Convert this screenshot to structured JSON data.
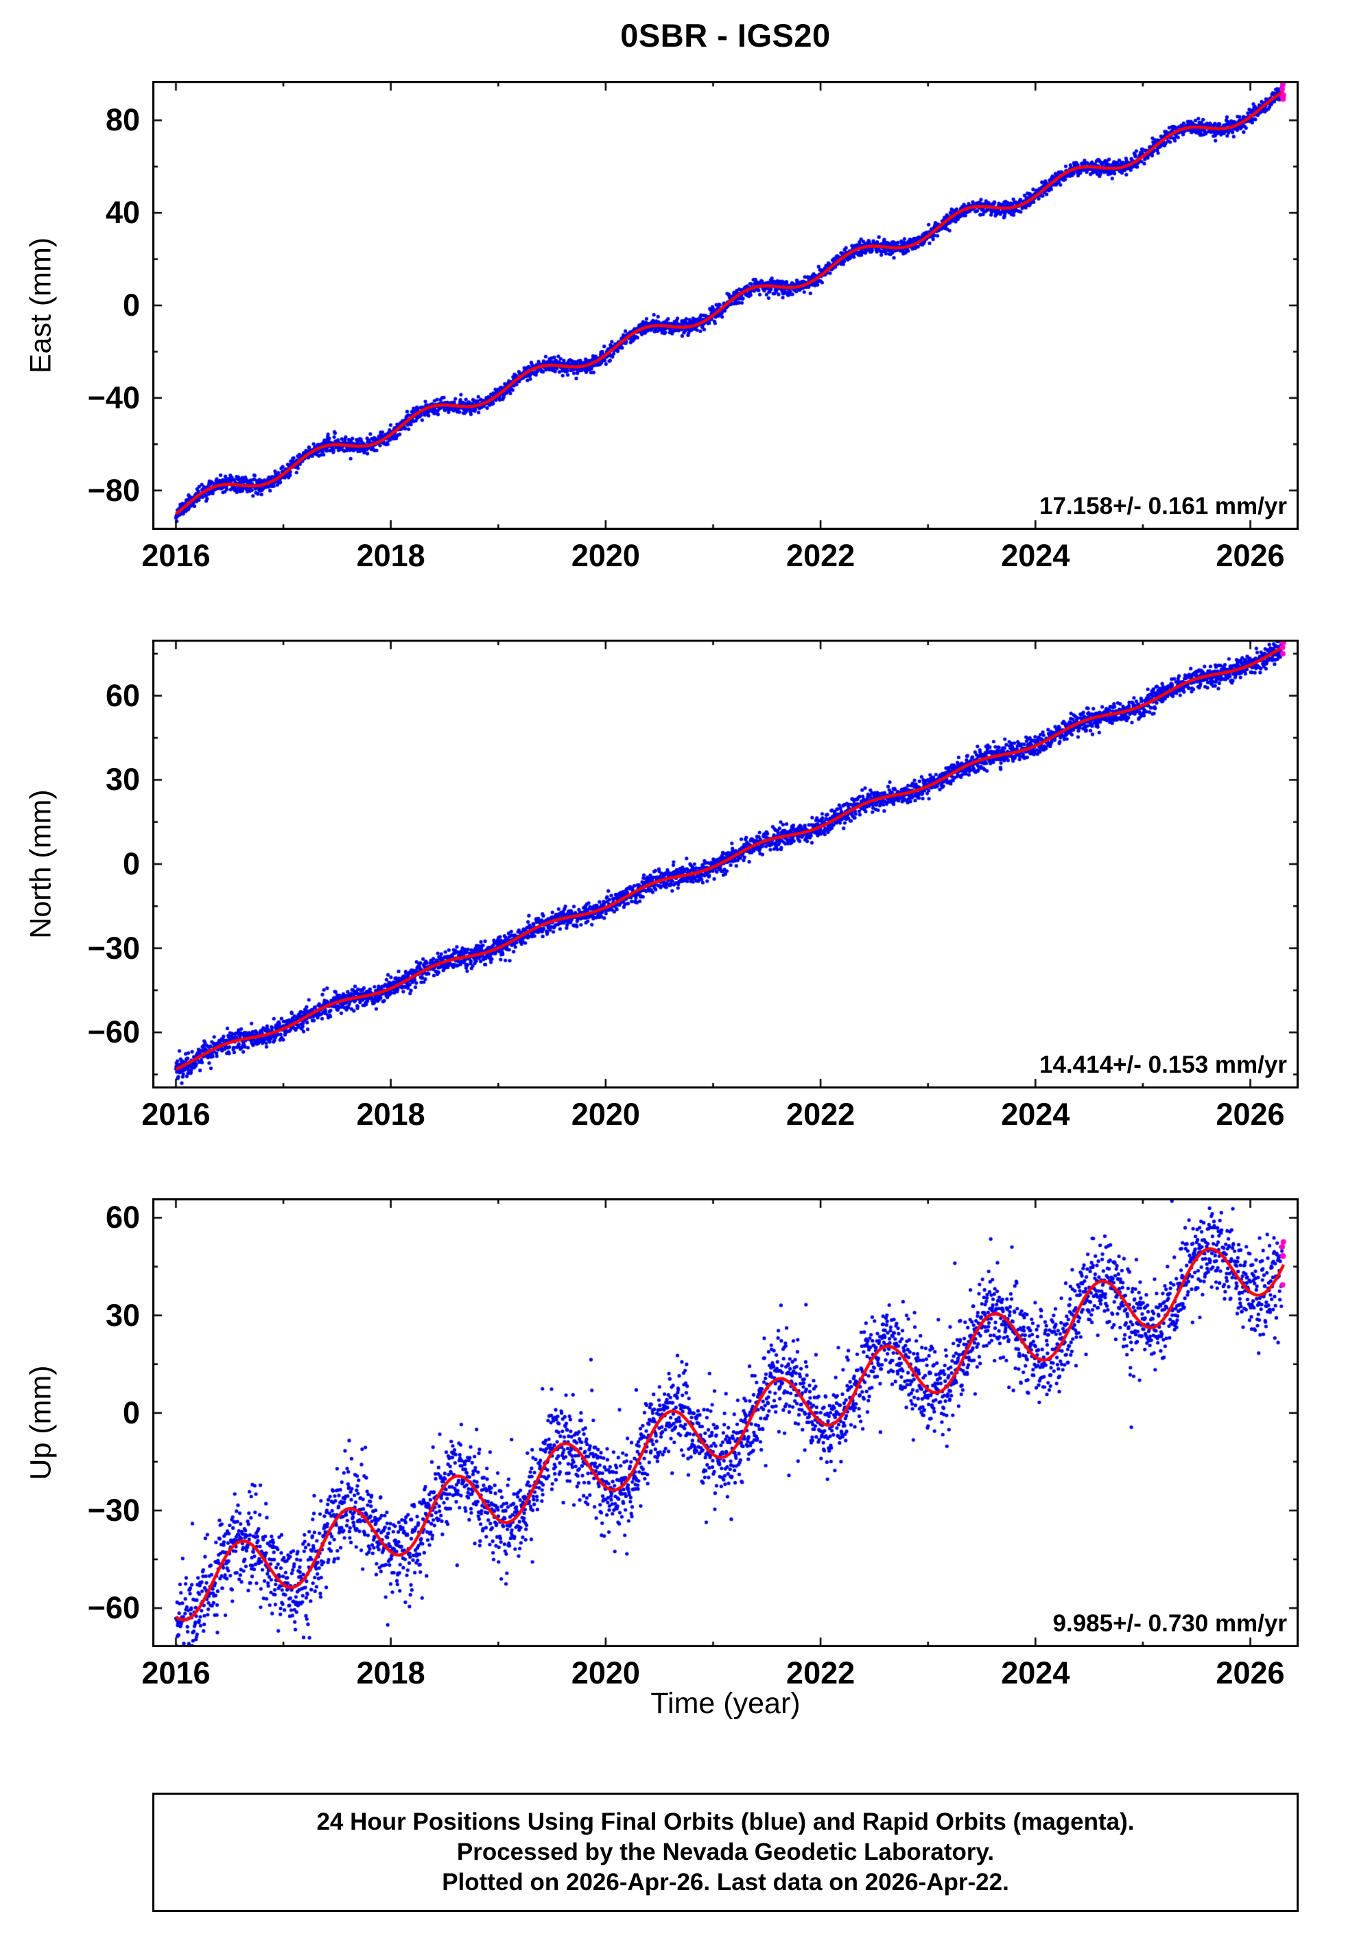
{
  "title": "0SBR - IGS20",
  "xlabel": "Time (year)",
  "footer": {
    "line1": "24 Hour Positions Using Final Orbits (blue) and Rapid Orbits (magenta).",
    "line2": "Processed by the Nevada Geodetic Laboratory.",
    "line3": "Plotted on 2026-Apr-26. Last data on 2026-Apr-22."
  },
  "colors": {
    "final_orbit_blue": "#0000ee",
    "model_line_red": "#ff0000",
    "rapid_orbit_magenta": "#ff00cc",
    "frame_black": "#000000"
  },
  "chart_data": [
    {
      "type": "scatter",
      "name": "east",
      "ylabel": "East (mm)",
      "rate_label": "17.158+/- 0.161 mm/yr",
      "x_range": [
        2015.78,
        2026.45
      ],
      "y_range": [
        -97,
        97
      ],
      "x_ticks_major": [
        2016,
        2018,
        2020,
        2022,
        2024,
        2026
      ],
      "x_ticks_minor": [
        2017,
        2019,
        2021,
        2023,
        2025
      ],
      "y_ticks_major": [
        -80,
        -40,
        0,
        40,
        80
      ],
      "y_ticks_minor": [
        -60,
        -20,
        20,
        60
      ],
      "series": {
        "start_year": 2016.0,
        "end_year": 2026.31,
        "start_value": -88,
        "rate_mm_per_yr": 17.158,
        "seasonal_amplitude_mm": 3.5,
        "seasonal_phase_yr": 0.1,
        "noise_sd_mm": 1.6,
        "outlier_fraction": 0,
        "outlier_sd_mm": 0,
        "rapid_count": 5
      },
      "model_anchor_points": [
        [
          2016,
          -88.0
        ],
        [
          2017,
          -70.8
        ],
        [
          2018,
          -53.7
        ],
        [
          2019,
          -36.5
        ],
        [
          2020,
          -19.4
        ],
        [
          2021,
          -2.2
        ],
        [
          2022,
          14.9
        ],
        [
          2023,
          32.1
        ],
        [
          2024,
          49.3
        ],
        [
          2025,
          66.4
        ],
        [
          2026,
          83.6
        ],
        [
          2026.3,
          88.7
        ]
      ]
    },
    {
      "type": "scatter",
      "name": "north",
      "ylabel": "North (mm)",
      "rate_label": "14.414+/- 0.153 mm/yr",
      "x_range": [
        2015.78,
        2026.45
      ],
      "y_range": [
        -80,
        80
      ],
      "x_ticks_major": [
        2016,
        2018,
        2020,
        2022,
        2024,
        2026
      ],
      "x_ticks_minor": [
        2017,
        2019,
        2021,
        2023,
        2025
      ],
      "y_ticks_major": [
        -60,
        -30,
        0,
        30,
        60
      ],
      "y_ticks_minor": [
        -75,
        -45,
        -15,
        15,
        45,
        75
      ],
      "series": {
        "start_year": 2016.0,
        "end_year": 2026.31,
        "start_value": -72,
        "rate_mm_per_yr": 14.414,
        "seasonal_amplitude_mm": 1.2,
        "seasonal_phase_yr": 0.2,
        "noise_sd_mm": 1.9,
        "outlier_fraction": 0,
        "outlier_sd_mm": 0,
        "rapid_count": 5
      },
      "model_anchor_points": [
        [
          2016,
          -72.0
        ],
        [
          2017,
          -57.6
        ],
        [
          2018,
          -43.2
        ],
        [
          2019,
          -28.8
        ],
        [
          2020,
          -14.3
        ],
        [
          2021,
          0.1
        ],
        [
          2022,
          14.5
        ],
        [
          2023,
          28.9
        ],
        [
          2024,
          43.3
        ],
        [
          2025,
          57.7
        ],
        [
          2026,
          72.1
        ],
        [
          2026.3,
          76.5
        ]
      ]
    },
    {
      "type": "scatter",
      "name": "up",
      "ylabel": "Up (mm)",
      "rate_label": "9.985+/- 0.730 mm/yr",
      "x_range": [
        2015.78,
        2026.45
      ],
      "y_range": [
        -72,
        66
      ],
      "x_ticks_major": [
        2016,
        2018,
        2020,
        2022,
        2024,
        2026
      ],
      "x_ticks_minor": [
        2017,
        2019,
        2021,
        2023,
        2025
      ],
      "y_ticks_major": [
        -60,
        -30,
        0,
        30,
        60
      ],
      "y_ticks_minor": [
        -45,
        -15,
        15,
        45
      ],
      "series": {
        "start_year": 2016.0,
        "end_year": 2026.31,
        "start_value": -55,
        "rate_mm_per_yr": 9.985,
        "seasonal_amplitude_mm": 9.5,
        "seasonal_phase_yr": 0.35,
        "noise_sd_mm": 6.5,
        "outlier_fraction": 0.05,
        "outlier_sd_mm": 13,
        "rapid_count": 5
      },
      "model_anchor_points": [
        [
          2016,
          -55.0
        ],
        [
          2017,
          -45.0
        ],
        [
          2018,
          -35.0
        ],
        [
          2019,
          -25.0
        ],
        [
          2020,
          -15.1
        ],
        [
          2021,
          -5.1
        ],
        [
          2022,
          4.9
        ],
        [
          2023,
          14.9
        ],
        [
          2024,
          24.9
        ],
        [
          2025,
          34.9
        ],
        [
          2026,
          44.9
        ],
        [
          2026.3,
          47.8
        ]
      ]
    }
  ]
}
